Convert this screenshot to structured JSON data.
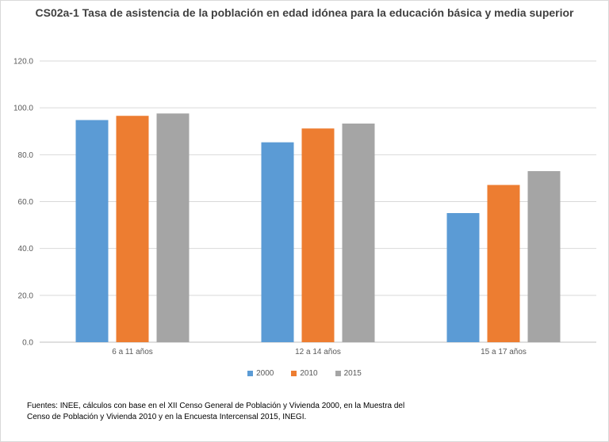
{
  "chart_data": {
    "type": "bar",
    "title": "CS02a-1 Tasa de asistencia de la población en edad idónea para la educación básica y media superior",
    "categories": [
      "6 a 11 años",
      "12 a 14 años",
      "15 a 17 años"
    ],
    "series": [
      {
        "name": "2000",
        "color": "#5b9bd5",
        "values": [
          94.8,
          85.3,
          55.1
        ]
      },
      {
        "name": "2010",
        "color": "#ed7d31",
        "values": [
          96.6,
          91.2,
          67.1
        ]
      },
      {
        "name": "2015",
        "color": "#a5a5a5",
        "values": [
          97.6,
          93.3,
          73.0
        ]
      }
    ],
    "ylim": [
      0,
      120
    ],
    "yticks": [
      "0.0",
      "20.0",
      "40.0",
      "60.0",
      "80.0",
      "100.0",
      "120.0"
    ],
    "ytick_values": [
      0,
      20,
      40,
      60,
      80,
      100,
      120
    ],
    "grid": true,
    "legend_position": "bottom",
    "xlabel": "",
    "ylabel": ""
  },
  "footnote": "Fuentes: INEE, cálculos con base en el XII Censo General de Población y Vivienda 2000, en la Muestra del Censo de Población y Vivienda 2010 y en la Encuesta Intercensal 2015, INEGI."
}
